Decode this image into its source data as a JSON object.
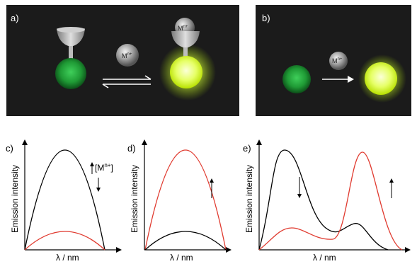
{
  "colors": {
    "panel_bg": "#1b1b1b",
    "dark_green": "#1f9a35",
    "bright_yellow_green": "#e6ff66",
    "ion_grey": "#9a9a9a",
    "curve_black": "#000000",
    "curve_red": "#e03a2f"
  },
  "top": {
    "a": {
      "label": "a)",
      "ion": "M",
      "ion_charge": "n+",
      "bound_ion": "M",
      "bound_charge": "n+"
    },
    "b": {
      "label": "b)",
      "ion": "M",
      "ion_charge": "n+"
    }
  },
  "plots": {
    "c": {
      "label": "c)",
      "ylabel": "Emission intensity",
      "xlabel": "λ / nm",
      "annotation_main": "[M",
      "annotation_sup": "n+",
      "annotation_close": "]"
    },
    "d": {
      "label": "d)",
      "ylabel": "Emission intensity",
      "xlabel": "λ / nm"
    },
    "e": {
      "label": "e)",
      "ylabel": "Emission intensity",
      "xlabel": "λ / nm"
    }
  }
}
